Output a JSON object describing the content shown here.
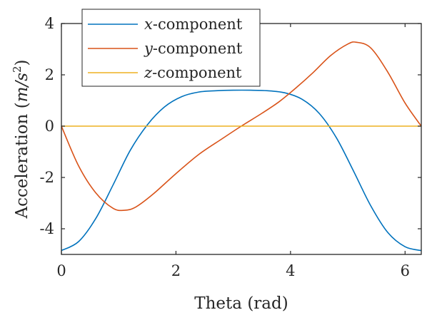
{
  "chart_data": {
    "type": "line",
    "xlabel": "Theta (rad)",
    "ylabel": {
      "prefix": "Acceleration (",
      "unit_m": "m",
      "unit_slash": "/",
      "unit_s": "s",
      "unit_exp": "2",
      "suffix": ")"
    },
    "xlim": [
      0,
      6.2832
    ],
    "ylim": [
      -5,
      4
    ],
    "x_ticks": [
      0,
      2,
      4,
      6
    ],
    "y_ticks": [
      4,
      2,
      0,
      -2,
      -4
    ],
    "x_tick_labels": [
      "0",
      "2",
      "4",
      "6"
    ],
    "y_tick_labels": [
      "4",
      "2",
      "0",
      "-2",
      "-4"
    ],
    "grid": false,
    "legend_position": "top-left",
    "series": [
      {
        "name": "x-component",
        "legend_symbol": "x",
        "legend_suffix": "-component",
        "color": "#0072BD",
        "x": [
          0,
          0.3,
          0.6,
          0.9,
          1.2,
          1.5,
          1.8,
          2.1,
          2.4,
          2.7,
          3.0,
          3.3,
          3.6,
          3.9,
          4.2,
          4.5,
          4.8,
          5.1,
          5.4,
          5.7,
          6.0,
          6.2832
        ],
        "y": [
          -4.85,
          -4.5,
          -3.6,
          -2.3,
          -0.95,
          0.05,
          0.75,
          1.15,
          1.33,
          1.38,
          1.4,
          1.4,
          1.38,
          1.3,
          1.05,
          0.5,
          -0.45,
          -1.75,
          -3.1,
          -4.15,
          -4.7,
          -4.85
        ]
      },
      {
        "name": "y-component",
        "legend_symbol": "y",
        "legend_suffix": "-component",
        "color": "#D95319",
        "x": [
          0,
          0.3,
          0.6,
          0.9,
          1.1,
          1.3,
          1.6,
          2.0,
          2.4,
          2.8,
          3.14,
          3.5,
          3.8,
          4.1,
          4.4,
          4.7,
          5.0,
          5.15,
          5.4,
          5.7,
          6.0,
          6.2832
        ],
        "y": [
          0,
          -1.55,
          -2.6,
          -3.2,
          -3.28,
          -3.15,
          -2.65,
          -1.85,
          -1.1,
          -0.5,
          0.0,
          0.5,
          0.95,
          1.5,
          2.1,
          2.75,
          3.2,
          3.27,
          3.05,
          2.1,
          0.9,
          0
        ]
      },
      {
        "name": "z-component",
        "legend_symbol": "z",
        "legend_suffix": "-component",
        "color": "#EDB120",
        "x": [
          0,
          6.2832
        ],
        "y": [
          0,
          0
        ]
      }
    ]
  }
}
